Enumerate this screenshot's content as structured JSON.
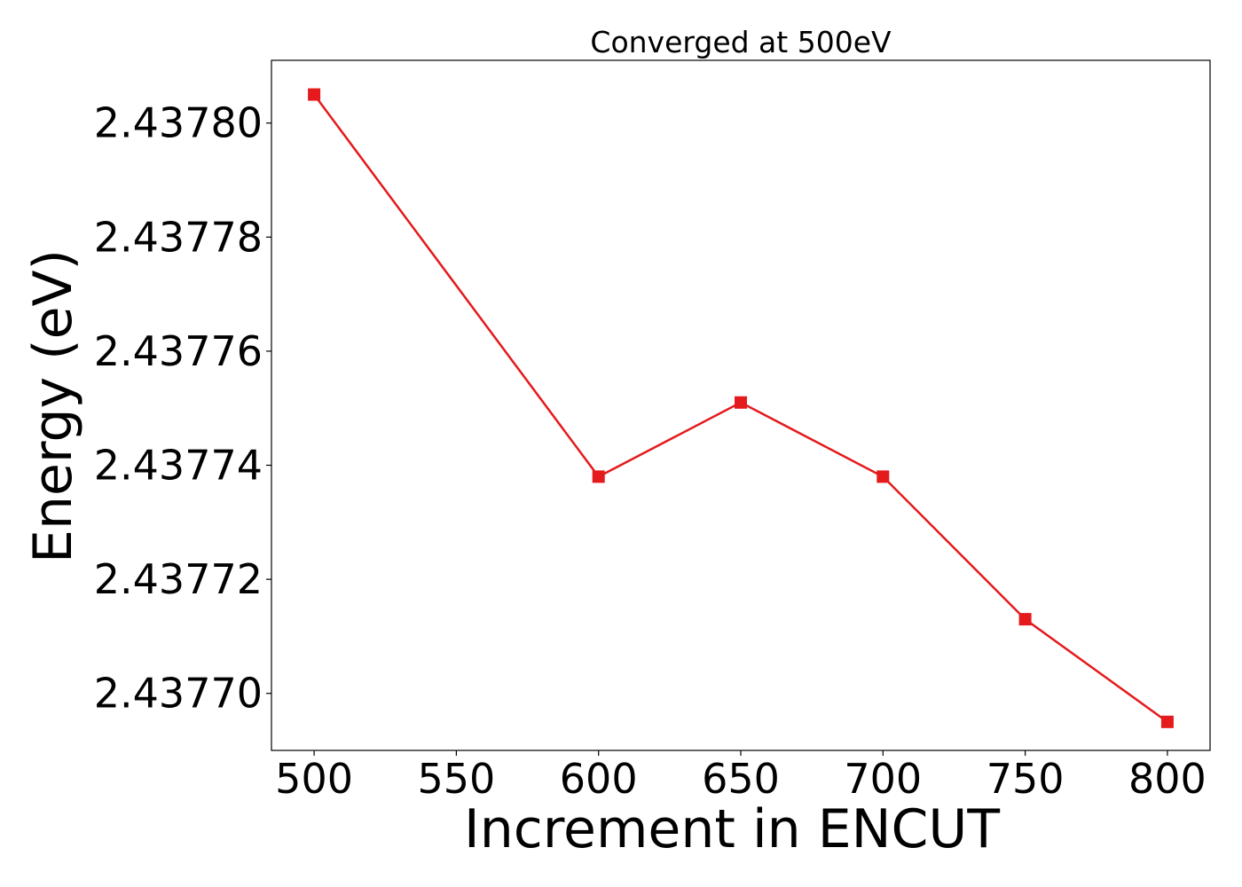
{
  "chart_data": {
    "type": "line",
    "title": "Converged at 500eV",
    "xlabel": "Increment in ENCUT",
    "ylabel": "Energy (eV)",
    "x": [
      500,
      600,
      650,
      700,
      750,
      800
    ],
    "series": [
      {
        "values": [
          2.437805,
          2.437738,
          2.437751,
          2.437738,
          2.437713,
          2.437695
        ],
        "color": "#e41a1c",
        "marker": "square"
      }
    ],
    "xticks": [
      500,
      550,
      600,
      650,
      700,
      750,
      800
    ],
    "xtick_labels": [
      "500",
      "550",
      "600",
      "650",
      "700",
      "750",
      "800"
    ],
    "yticks": [
      2.4377,
      2.43772,
      2.43774,
      2.43776,
      2.43778,
      2.4378
    ],
    "ytick_labels": [
      "2.43770",
      "2.43772",
      "2.43774",
      "2.43776",
      "2.43778",
      "2.43780"
    ],
    "xlim": [
      485,
      815
    ],
    "ylim": [
      2.43769,
      2.437811
    ],
    "grid": false,
    "legend": false
  }
}
